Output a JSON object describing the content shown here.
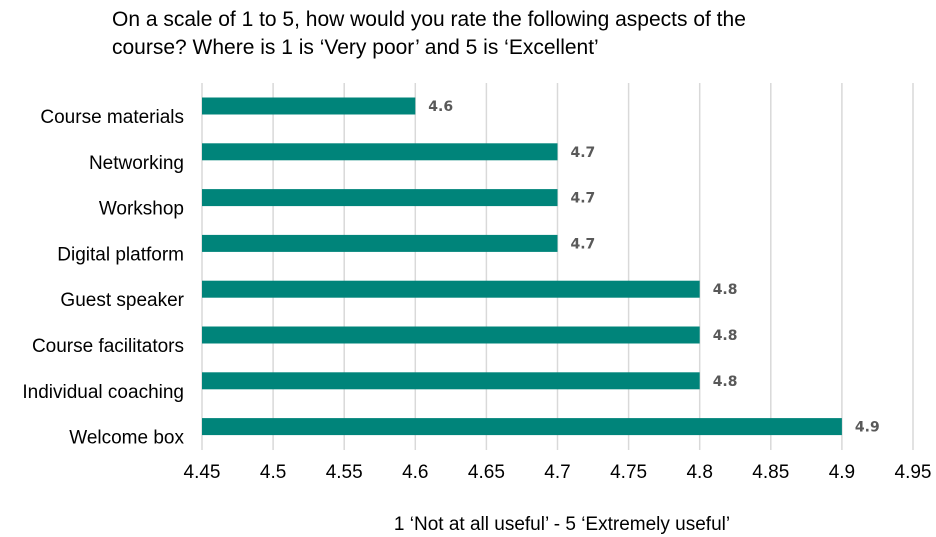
{
  "chart_data": {
    "type": "bar",
    "orientation": "horizontal",
    "title_lines": [
      "On a scale of 1 to 5, how would you rate the following aspects of the",
      "course?  Where is 1 is ‘Very poor’ and 5 is ‘Excellent’"
    ],
    "xlabel": "1 ‘Not at all useful’ - 5 ‘Extremely useful’",
    "ylabel": "",
    "categories": [
      "Course materials",
      "Networking",
      "Workshop",
      "Digital platform",
      "Guest speaker",
      "Course facilitators",
      "Individual coaching",
      "Welcome box"
    ],
    "values": [
      4.6,
      4.7,
      4.7,
      4.7,
      4.8,
      4.8,
      4.8,
      4.9
    ],
    "xlim": [
      4.45,
      4.95
    ],
    "xticks": [
      "4.45",
      "4.5",
      "4.55",
      "4.6",
      "4.65",
      "4.7",
      "4.75",
      "4.8",
      "4.85",
      "4.9",
      "4.95"
    ],
    "grid": "vertical",
    "legend": "none",
    "bar_color": "#00847A",
    "gridline_color": "#D9D9D9",
    "data_label_color": "#595959"
  }
}
